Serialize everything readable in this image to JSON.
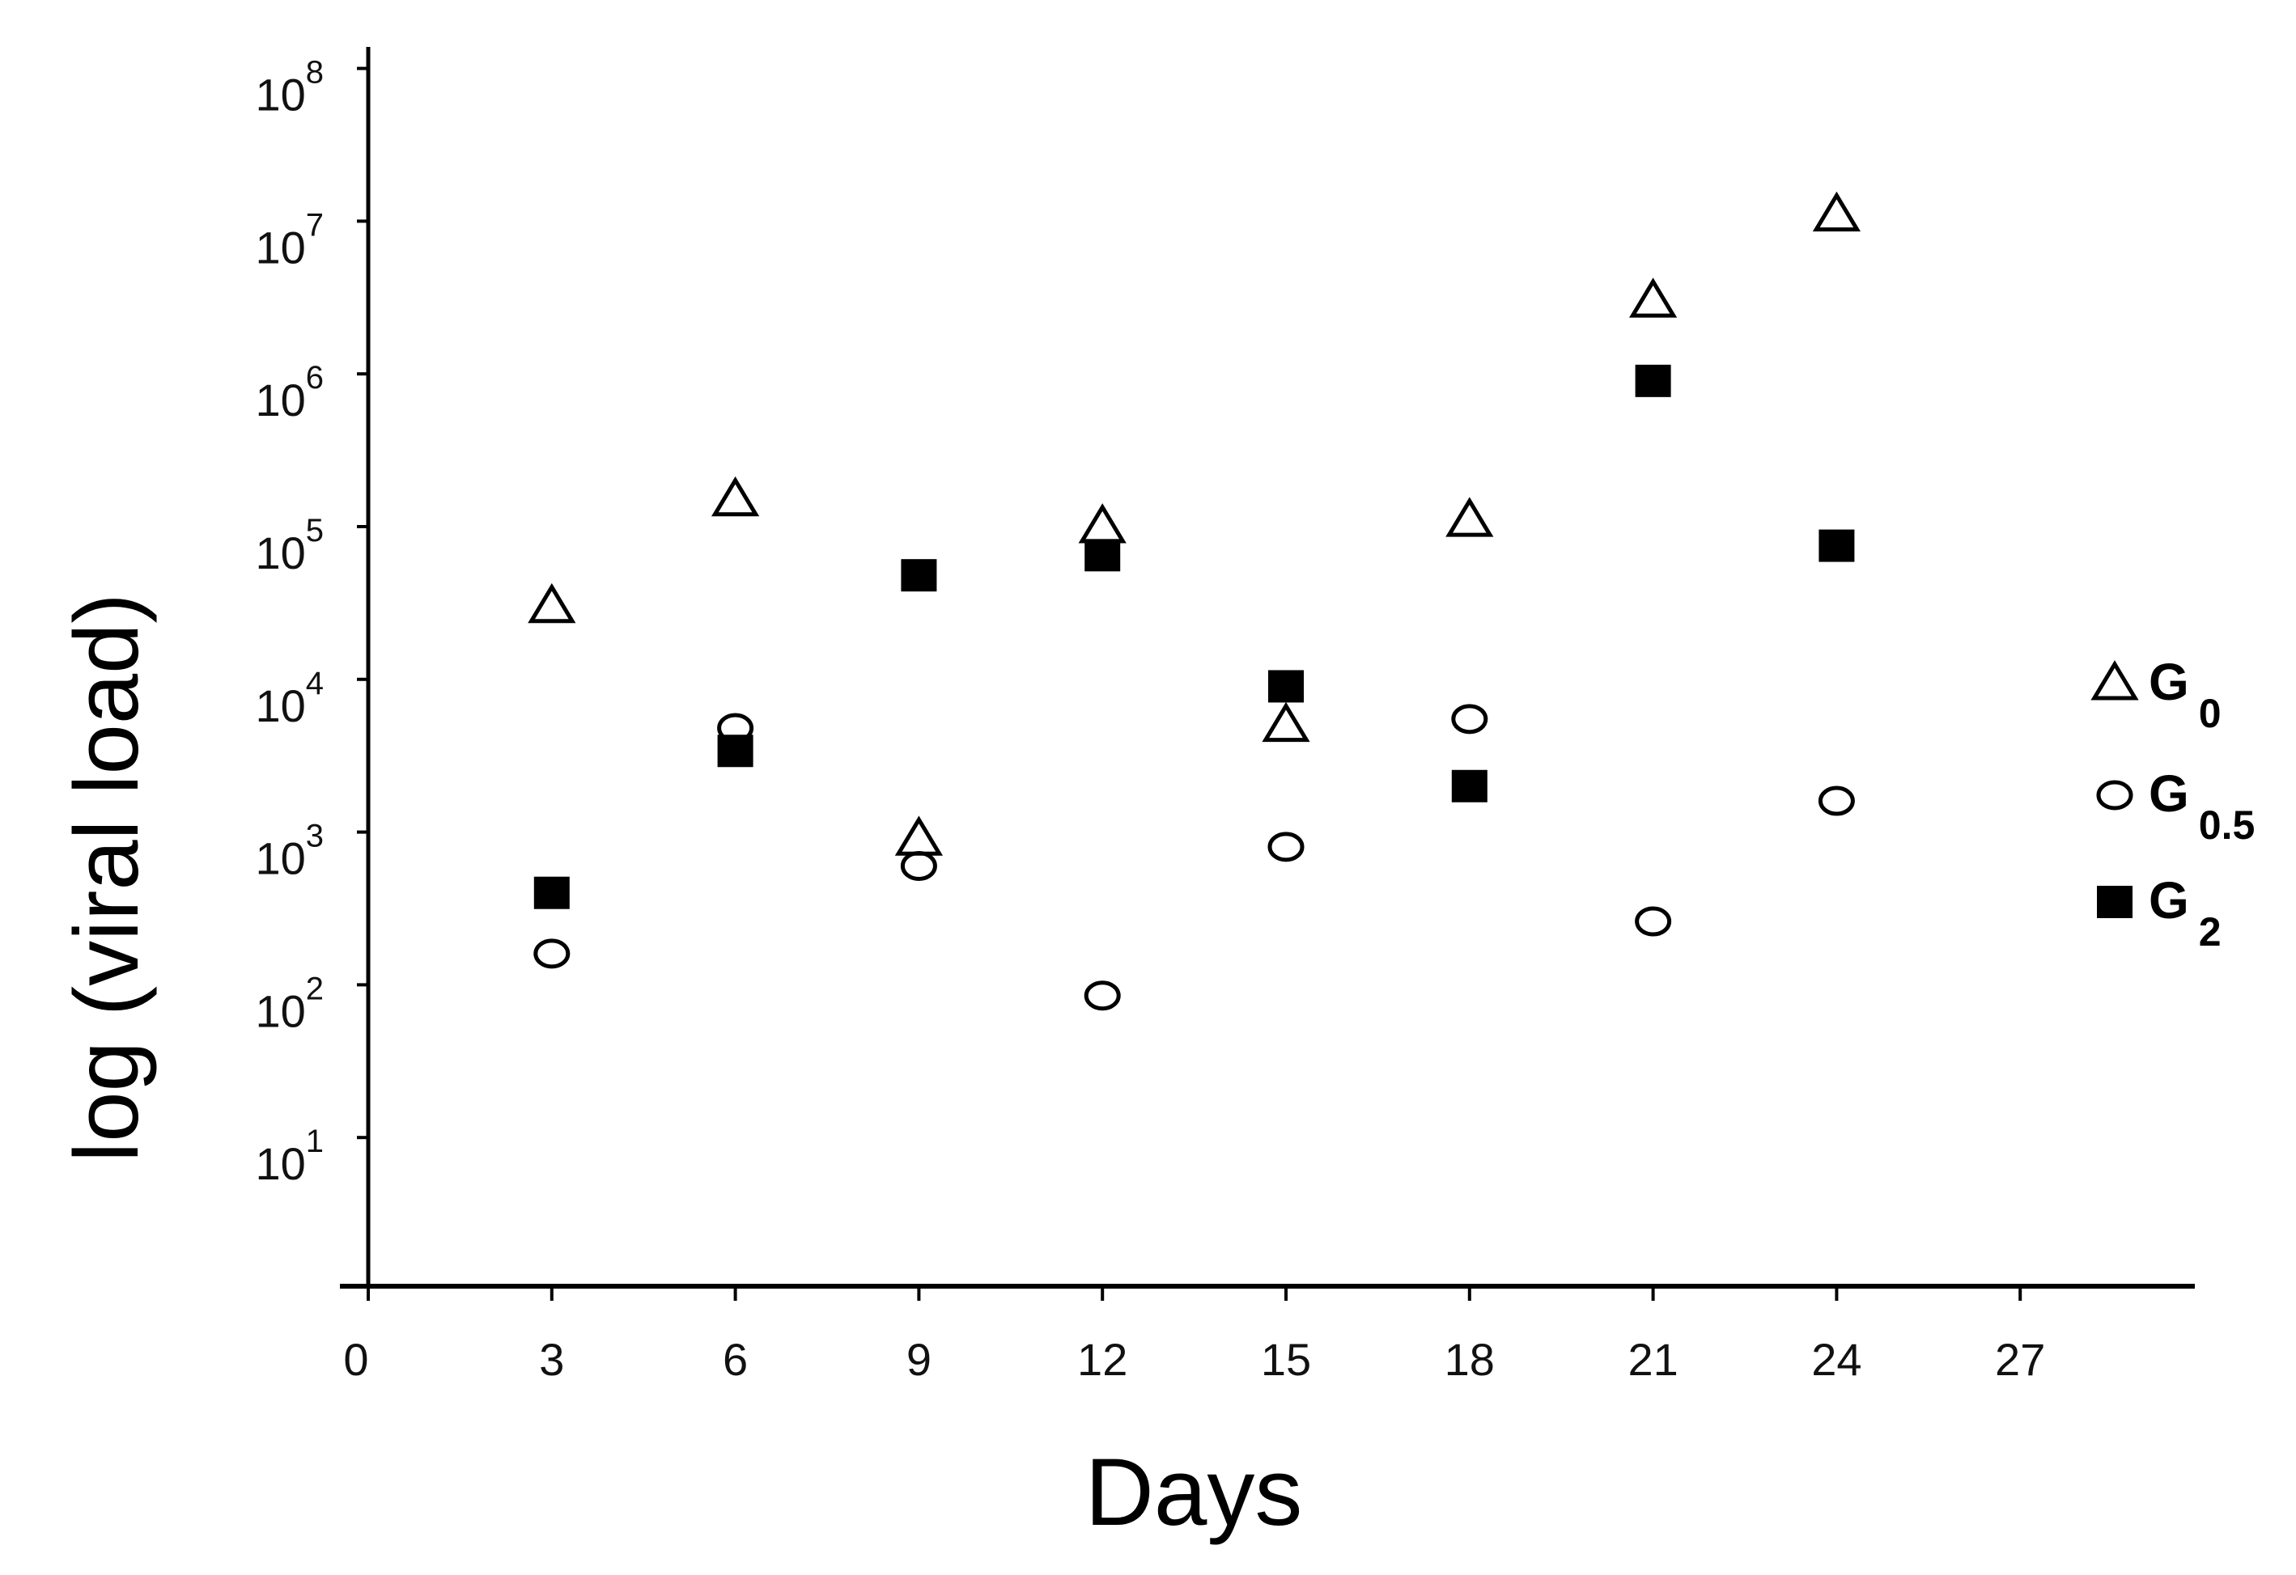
{
  "chart_data": {
    "type": "scatter",
    "title": "",
    "xlabel": "Days",
    "ylabel": "log (viral load)",
    "xlim": [
      0,
      30
    ],
    "ylim": [
      1,
      100000000
    ],
    "yscale": "log",
    "x_ticks": [
      0,
      3,
      6,
      9,
      12,
      15,
      18,
      21,
      24,
      27
    ],
    "y_ticks": [
      {
        "exp": 1,
        "base": "10",
        "sup": "1"
      },
      {
        "exp": 2,
        "base": "10",
        "sup": "2"
      },
      {
        "exp": 3,
        "base": "10",
        "sup": "3"
      },
      {
        "exp": 4,
        "base": "10",
        "sup": "4"
      },
      {
        "exp": 5,
        "base": "10",
        "sup": "5"
      },
      {
        "exp": 6,
        "base": "10",
        "sup": "6"
      },
      {
        "exp": 7,
        "base": "10",
        "sup": "7"
      },
      {
        "exp": 8,
        "base": "10",
        "sup": "8"
      }
    ],
    "grid": false,
    "legend_position": "right",
    "series": [
      {
        "key": "g0",
        "name_base": "G",
        "name_sub": "0",
        "marker": "open-triangle",
        "points": [
          {
            "x": 3,
            "y": 30000
          },
          {
            "x": 6,
            "y": 150000
          },
          {
            "x": 9,
            "y": 900
          },
          {
            "x": 12,
            "y": 100000
          },
          {
            "x": 15,
            "y": 5000
          },
          {
            "x": 18,
            "y": 110000
          },
          {
            "x": 21,
            "y": 3000000
          },
          {
            "x": 24,
            "y": 11000000
          }
        ]
      },
      {
        "key": "g05",
        "name_base": "G",
        "name_sub": "0.5",
        "marker": "open-circle",
        "points": [
          {
            "x": 3,
            "y": 160
          },
          {
            "x": 6,
            "y": 4800
          },
          {
            "x": 9,
            "y": 600
          },
          {
            "x": 12,
            "y": 85
          },
          {
            "x": 15,
            "y": 800
          },
          {
            "x": 18,
            "y": 5500
          },
          {
            "x": 21,
            "y": 260
          },
          {
            "x": 24,
            "y": 1600
          }
        ]
      },
      {
        "key": "g2",
        "name_base": "G",
        "name_sub": "2",
        "marker": "filled-square",
        "points": [
          {
            "x": 3,
            "y": 400
          },
          {
            "x": 6,
            "y": 3400
          },
          {
            "x": 9,
            "y": 48000
          },
          {
            "x": 12,
            "y": 65000
          },
          {
            "x": 15,
            "y": 9000
          },
          {
            "x": 18,
            "y": 2000
          },
          {
            "x": 21,
            "y": 900000
          },
          {
            "x": 24,
            "y": 75000
          }
        ]
      }
    ],
    "colors": {
      "marker": "#000000",
      "axis": "#000000",
      "background": "#ffffff"
    }
  }
}
